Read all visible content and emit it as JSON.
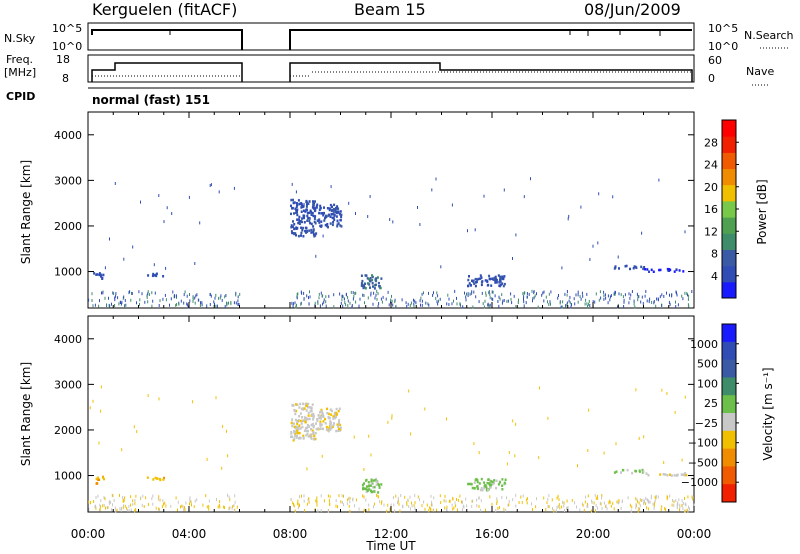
{
  "header": {
    "station": "Kerguelen (fitACF)",
    "beam": "Beam 15",
    "date": "08/Jun/2009"
  },
  "strip_labels": {
    "nsky": "N.Sky",
    "nsky_ticks": [
      "10^5",
      "10^0"
    ],
    "nsearch": "N.Search",
    "nsearch_ticks": [
      "10^5",
      "10^0"
    ],
    "freq": "Freq.",
    "freq_unit": "[MHz]",
    "freq_ticks": [
      "18",
      "8"
    ],
    "nave": "Nave",
    "nave_ticks": [
      "60",
      "0"
    ],
    "cpid": "CPID",
    "cpid_value": "normal (fast) 151"
  },
  "colors": {
    "power": [
      "#1a1aff",
      "#2f4db4",
      "#3a5aa6",
      "#3f8c6a",
      "#4fa050",
      "#78c84a",
      "#f0c000",
      "#f08c00",
      "#f05a00",
      "#f02000",
      "#ff0000"
    ],
    "velocity": [
      "#1a1aff",
      "#2f4db4",
      "#3a5aa6",
      "#3f8c6a",
      "#6cbf4a",
      "#c8c8c8",
      "#f0c000",
      "#f08c00",
      "#f05a00",
      "#f02000"
    ],
    "ground_scatter": "#c0c0c0"
  },
  "chart_data": [
    {
      "type": "heatmap",
      "name": "power",
      "ylabel": "Slant Range [km]",
      "yticks": [
        "1000",
        "2000",
        "3000",
        "4000"
      ],
      "ylim": [
        200,
        4500
      ],
      "colorbar_label": "Power [dB]",
      "colorbar_ticks": [
        "4",
        "8",
        "12",
        "16",
        "20",
        "24",
        "28"
      ],
      "scatter_regions": [
        {
          "t0": 0.2,
          "t1": 0.6,
          "r0": 850,
          "r1": 1000,
          "level": 1
        },
        {
          "t0": 2.3,
          "t1": 3.0,
          "r0": 920,
          "r1": 1000,
          "level": 1
        },
        {
          "t0": 8.0,
          "t1": 9.0,
          "r0": 1800,
          "r1": 2600,
          "level": 1
        },
        {
          "t0": 9.0,
          "t1": 10.0,
          "r0": 2000,
          "r1": 2500,
          "level": 1
        },
        {
          "t0": 10.8,
          "t1": 11.6,
          "r0": 650,
          "r1": 950,
          "level": 2
        },
        {
          "t0": 15.0,
          "t1": 16.5,
          "r0": 700,
          "r1": 950,
          "level": 1
        },
        {
          "t0": 20.8,
          "t1": 22.0,
          "r0": 1080,
          "r1": 1150,
          "level": 1
        },
        {
          "t0": 22.0,
          "t1": 23.8,
          "r0": 1020,
          "r1": 1080,
          "level": 0
        }
      ]
    },
    {
      "type": "heatmap",
      "name": "velocity",
      "ylabel": "Slant Range [km]",
      "yticks": [
        "1000",
        "2000",
        "3000",
        "4000"
      ],
      "ylim": [
        200,
        4500
      ],
      "xlabel": "Time UT",
      "xticks": [
        "00:00",
        "04:00",
        "08:00",
        "12:00",
        "16:00",
        "20:00",
        "00:00"
      ],
      "colorbar_label": "Velocity [m s⁻¹]",
      "colorbar_ticks": [
        "1000",
        "500",
        "100",
        "25",
        "−25",
        "−100",
        "−500",
        "−1000"
      ],
      "scatter_regions": [
        {
          "t0": 0.2,
          "t1": 0.6,
          "r0": 850,
          "r1": 1000,
          "level": 6
        },
        {
          "t0": 2.3,
          "t1": 3.0,
          "r0": 920,
          "r1": 1000,
          "level": 6
        },
        {
          "t0": 8.0,
          "t1": 9.0,
          "r0": 1800,
          "r1": 2600,
          "level": 5
        },
        {
          "t0": 9.0,
          "t1": 10.0,
          "r0": 2000,
          "r1": 2500,
          "level": 5
        },
        {
          "t0": 10.8,
          "t1": 11.6,
          "r0": 650,
          "r1": 950,
          "level": 4
        },
        {
          "t0": 15.0,
          "t1": 16.5,
          "r0": 700,
          "r1": 950,
          "level": 4
        },
        {
          "t0": 20.8,
          "t1": 22.0,
          "r0": 1080,
          "r1": 1150,
          "level": 4
        },
        {
          "t0": 22.0,
          "t1": 23.8,
          "r0": 1020,
          "r1": 1080,
          "level": 5
        }
      ]
    }
  ]
}
